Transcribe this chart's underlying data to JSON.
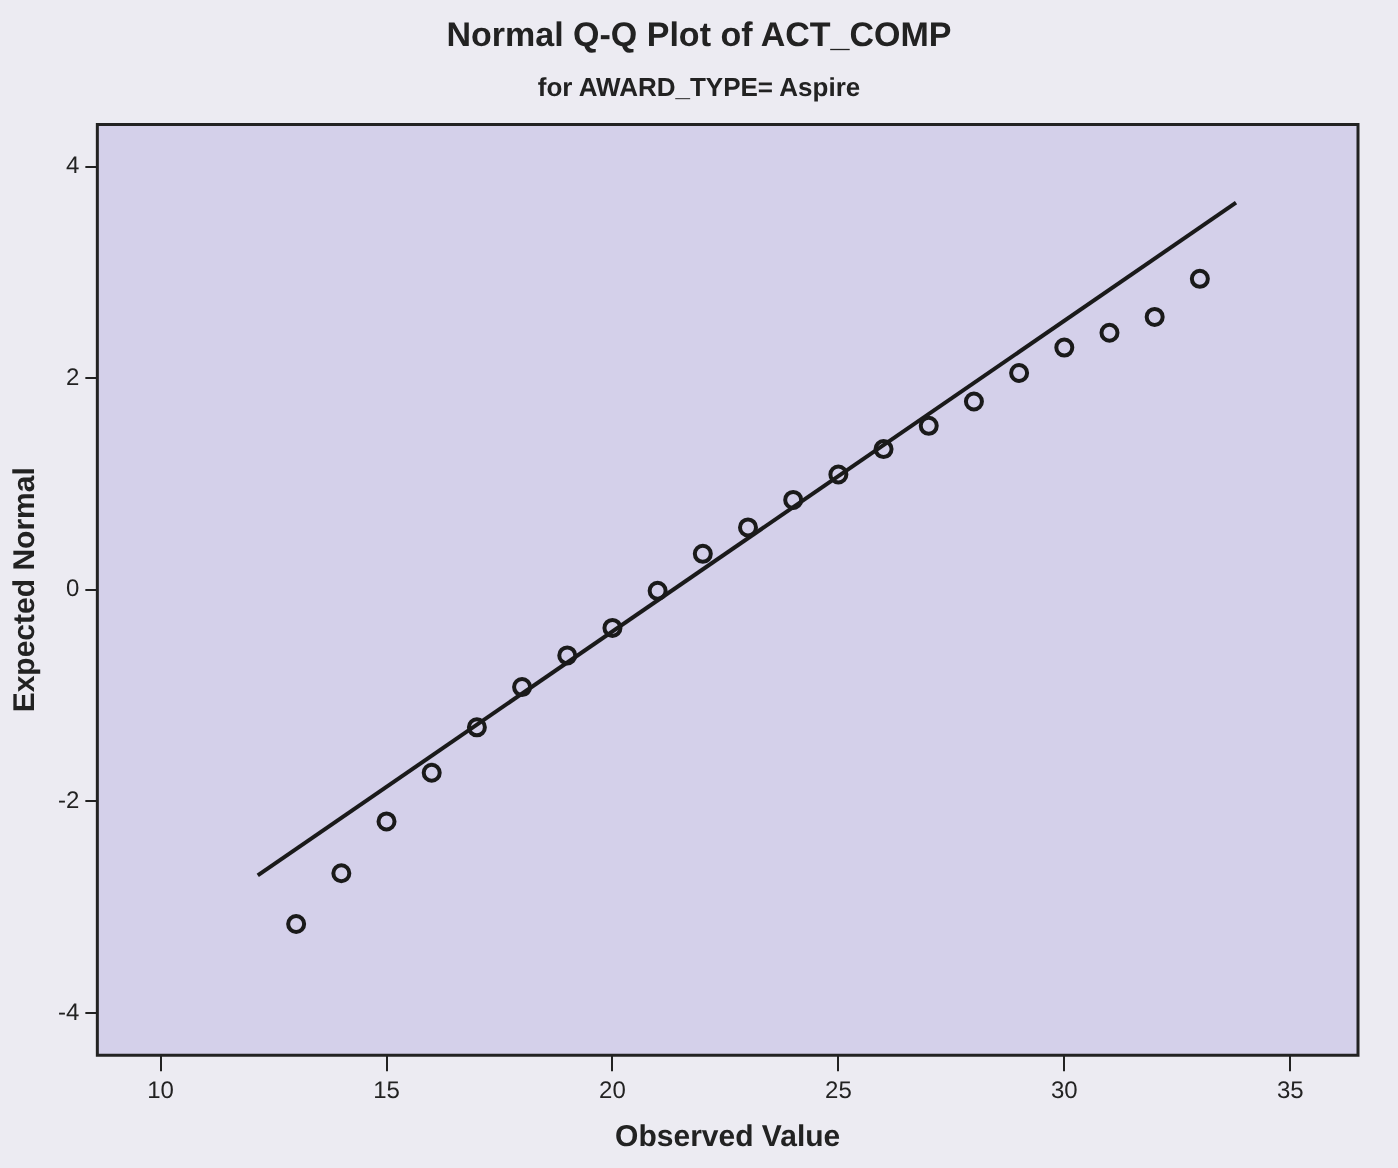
{
  "chart_data": {
    "type": "scatter",
    "title": "Normal Q-Q Plot of ACT_COMP",
    "subtitle": "for AWARD_TYPE= Aspire",
    "xlabel": "Observed Value",
    "ylabel": "Expected Normal",
    "xlim": [
      8.6,
      36.5
    ],
    "xticks": [
      10,
      15,
      20,
      25,
      30,
      35
    ],
    "ylim": [
      -4.4,
      4.4
    ],
    "yticks": [
      -4,
      -2,
      0,
      2,
      4
    ],
    "grid": false,
    "legend": false,
    "marker": "circle",
    "series": [
      {
        "color": "#1a1a1a",
        "x": [
          13,
          14,
          15,
          16,
          17,
          18,
          19,
          20,
          21,
          22,
          23,
          24,
          25,
          26,
          27,
          28,
          29,
          30,
          31,
          32,
          33
        ],
        "values": [
          -3.16,
          -2.68,
          -2.19,
          -1.73,
          -1.3,
          -0.92,
          -0.62,
          -0.36,
          -0.01,
          0.34,
          0.59,
          0.85,
          1.09,
          1.33,
          1.55,
          1.78,
          2.05,
          2.29,
          2.43,
          2.58,
          2.94
        ]
      },
      {
        "type": "line",
        "marker": "none",
        "color": "#1a1a1a",
        "x": [
          12.15,
          33.8
        ],
        "values": [
          -2.7,
          3.66
        ]
      }
    ]
  }
}
